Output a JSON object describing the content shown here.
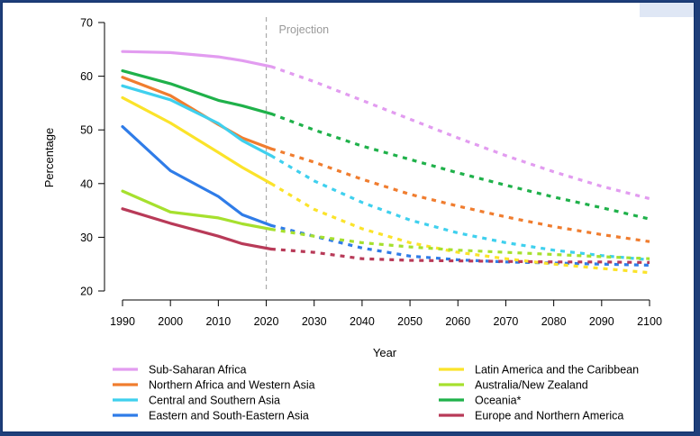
{
  "chart_data": {
    "type": "line",
    "xlabel": "Year",
    "ylabel": "Percentage",
    "xlim": [
      1990,
      2100
    ],
    "ylim": [
      20,
      70
    ],
    "x_ticks": [
      1990,
      2000,
      2010,
      2020,
      2030,
      2040,
      2050,
      2060,
      2070,
      2080,
      2090,
      2100
    ],
    "y_ticks": [
      20,
      30,
      40,
      50,
      60,
      70
    ],
    "projection_start": 2021,
    "projection_label": "Projection",
    "grid": false,
    "legend_position": "bottom",
    "series": [
      {
        "name": "Sub-Saharan Africa",
        "color": "#e29cf0",
        "estimate": [
          [
            1990,
            64.6
          ],
          [
            2000,
            64.4
          ],
          [
            2010,
            63.6
          ],
          [
            2015,
            62.9
          ],
          [
            2021,
            61.8
          ]
        ],
        "projection": [
          [
            2021,
            61.8
          ],
          [
            2030,
            59.0
          ],
          [
            2040,
            55.5
          ],
          [
            2050,
            52.0
          ],
          [
            2060,
            48.5
          ],
          [
            2070,
            45.2
          ],
          [
            2080,
            42.2
          ],
          [
            2090,
            39.5
          ],
          [
            2100,
            37.2
          ]
        ]
      },
      {
        "name": "Northern Africa and Western Asia",
        "color": "#f07d2f",
        "estimate": [
          [
            1990,
            59.8
          ],
          [
            2000,
            56.4
          ],
          [
            2010,
            51.0
          ],
          [
            2015,
            48.5
          ],
          [
            2021,
            46.5
          ]
        ],
        "projection": [
          [
            2021,
            46.5
          ],
          [
            2030,
            44.0
          ],
          [
            2040,
            40.8
          ],
          [
            2050,
            38.0
          ],
          [
            2060,
            35.8
          ],
          [
            2070,
            33.8
          ],
          [
            2080,
            32.0
          ],
          [
            2090,
            30.5
          ],
          [
            2100,
            29.2
          ]
        ]
      },
      {
        "name": "Central and Southern Asia",
        "color": "#3fd0ee",
        "estimate": [
          [
            1990,
            58.2
          ],
          [
            2000,
            55.6
          ],
          [
            2010,
            51.2
          ],
          [
            2015,
            48.0
          ],
          [
            2021,
            45.2
          ]
        ],
        "projection": [
          [
            2021,
            45.2
          ],
          [
            2030,
            40.5
          ],
          [
            2040,
            36.5
          ],
          [
            2050,
            33.2
          ],
          [
            2060,
            30.8
          ],
          [
            2070,
            29.0
          ],
          [
            2080,
            27.6
          ],
          [
            2090,
            26.6
          ],
          [
            2100,
            25.8
          ]
        ]
      },
      {
        "name": "Eastern and South-Eastern Asia",
        "color": "#2f7ce8",
        "estimate": [
          [
            1990,
            50.6
          ],
          [
            2000,
            42.4
          ],
          [
            2010,
            37.6
          ],
          [
            2015,
            34.2
          ],
          [
            2021,
            32.2
          ]
        ],
        "projection": [
          [
            2021,
            32.2
          ],
          [
            2030,
            30.2
          ],
          [
            2040,
            28.0
          ],
          [
            2050,
            26.5
          ],
          [
            2060,
            25.8
          ],
          [
            2070,
            25.4
          ],
          [
            2080,
            25.2
          ],
          [
            2090,
            25.0
          ],
          [
            2100,
            24.8
          ]
        ]
      },
      {
        "name": "Latin America and the Caribbean",
        "color": "#fbe32a",
        "estimate": [
          [
            1990,
            56.0
          ],
          [
            2000,
            51.3
          ],
          [
            2010,
            45.8
          ],
          [
            2015,
            43.0
          ],
          [
            2021,
            40.0
          ]
        ],
        "projection": [
          [
            2021,
            40.0
          ],
          [
            2030,
            35.2
          ],
          [
            2040,
            31.6
          ],
          [
            2050,
            29.0
          ],
          [
            2060,
            27.2
          ],
          [
            2070,
            26.0
          ],
          [
            2080,
            25.0
          ],
          [
            2090,
            24.2
          ],
          [
            2100,
            23.4
          ]
        ]
      },
      {
        "name": "Australia/New Zealand",
        "color": "#a6e02e",
        "estimate": [
          [
            1990,
            38.6
          ],
          [
            2000,
            34.7
          ],
          [
            2010,
            33.6
          ],
          [
            2015,
            32.5
          ],
          [
            2021,
            31.5
          ]
        ],
        "projection": [
          [
            2021,
            31.5
          ],
          [
            2030,
            30.2
          ],
          [
            2040,
            29.0
          ],
          [
            2050,
            28.2
          ],
          [
            2060,
            27.6
          ],
          [
            2070,
            27.2
          ],
          [
            2080,
            26.8
          ],
          [
            2090,
            26.4
          ],
          [
            2100,
            26.0
          ]
        ]
      },
      {
        "name": "Oceania*",
        "color": "#1fb14a",
        "estimate": [
          [
            1990,
            61.0
          ],
          [
            2000,
            58.6
          ],
          [
            2010,
            55.5
          ],
          [
            2015,
            54.5
          ],
          [
            2021,
            53.0
          ]
        ],
        "projection": [
          [
            2021,
            53.0
          ],
          [
            2030,
            50.0
          ],
          [
            2040,
            47.0
          ],
          [
            2050,
            44.5
          ],
          [
            2060,
            42.0
          ],
          [
            2070,
            39.7
          ],
          [
            2080,
            37.5
          ],
          [
            2090,
            35.5
          ],
          [
            2100,
            33.4
          ]
        ]
      },
      {
        "name": "Europe and Northern America",
        "color": "#b83a58",
        "estimate": [
          [
            1990,
            35.3
          ],
          [
            2000,
            32.6
          ],
          [
            2010,
            30.2
          ],
          [
            2015,
            28.8
          ],
          [
            2021,
            27.8
          ]
        ],
        "projection": [
          [
            2021,
            27.8
          ],
          [
            2030,
            27.2
          ],
          [
            2040,
            26.0
          ],
          [
            2050,
            25.7
          ],
          [
            2060,
            25.6
          ],
          [
            2070,
            25.5
          ],
          [
            2080,
            25.4
          ],
          [
            2090,
            25.4
          ],
          [
            2100,
            25.3
          ]
        ]
      }
    ]
  }
}
